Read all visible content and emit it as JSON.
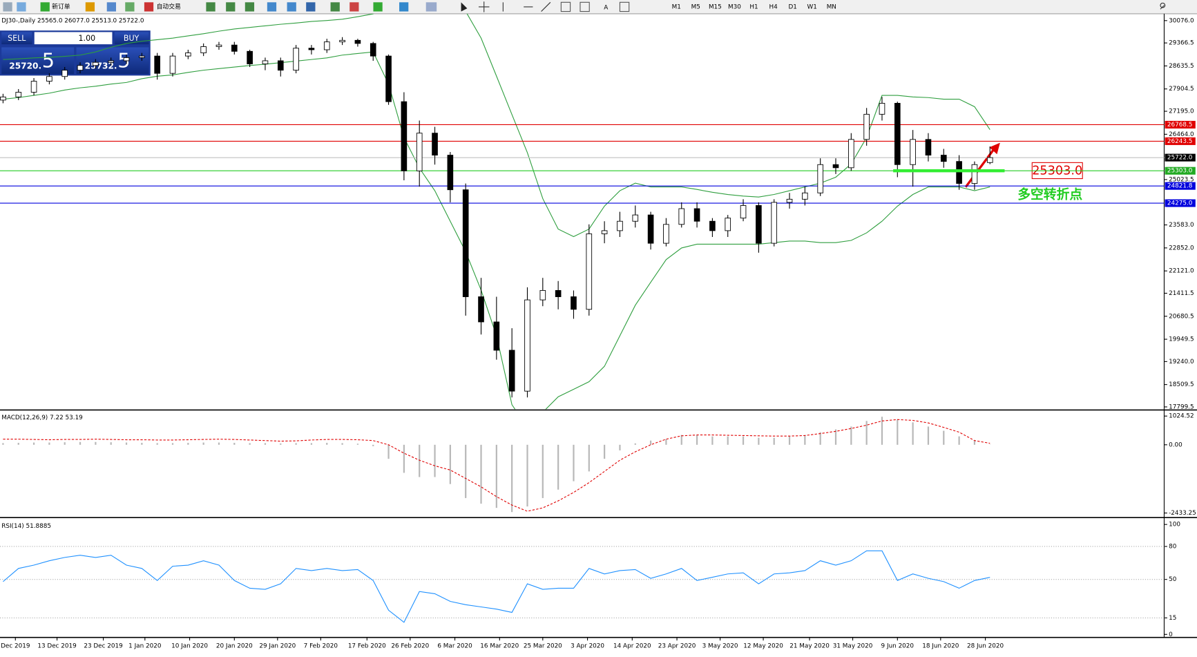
{
  "toolbar": {
    "new_order": "新订单",
    "auto_trading": "自动交易",
    "timeframes": [
      "M1",
      "M5",
      "M15",
      "M30",
      "H1",
      "H4",
      "D1",
      "W1",
      "MN"
    ]
  },
  "trade_panel": {
    "sell": "SELL",
    "lot": "1.00",
    "buy": "BUY",
    "sell_price": "25720.",
    "sell_pip": "5",
    "buy_price": "25732.",
    "buy_pip": "5"
  },
  "annotation": {
    "label": "25303.0",
    "text": "多空转折点"
  },
  "chart_data": [
    {
      "type": "candlestick",
      "title": "DJ30-,Daily  25565.0 26077.0 25513.0 25722.0",
      "up_color": "#ffffff",
      "down_color": "#000000",
      "band_color": "#2e9e3e",
      "open": [
        27550,
        27650,
        27800,
        28150,
        28300,
        28500,
        28650,
        28750,
        28800,
        28900,
        28950,
        28400,
        28950,
        29050,
        29250,
        29300,
        29100,
        28700,
        28800,
        28500,
        29200,
        29150,
        29400,
        29450,
        29350,
        28950,
        27500,
        25300,
        26500,
        25800,
        24700,
        21300,
        20500,
        19600,
        18300,
        21200,
        21500,
        21300,
        20900,
        23300,
        23400,
        23700,
        23900,
        23000,
        23600,
        24100,
        23700,
        23400,
        23800,
        24200,
        23000,
        24300,
        24400,
        24600,
        25500,
        25400,
        26300,
        27100,
        27450,
        25500,
        26300,
        25800,
        25600,
        24900,
        25565
      ],
      "high": [
        27750,
        27900,
        28250,
        28400,
        28600,
        28750,
        28850,
        28900,
        29000,
        29050,
        29050,
        29050,
        29150,
        29350,
        29400,
        29400,
        29150,
        28900,
        28900,
        29300,
        29300,
        29500,
        29550,
        29500,
        29400,
        29000,
        27800,
        26900,
        26700,
        25900,
        24900,
        21900,
        21300,
        20300,
        21600,
        21900,
        21800,
        21500,
        23600,
        23700,
        24000,
        24200,
        24000,
        23800,
        24300,
        24300,
        23800,
        23900,
        24400,
        24300,
        24400,
        24600,
        24800,
        25700,
        25700,
        26500,
        27300,
        27650,
        27500,
        26600,
        26500,
        26000,
        25800,
        25600,
        26077
      ],
      "low": [
        27450,
        27550,
        27700,
        28050,
        28200,
        28400,
        28550,
        28650,
        28700,
        28800,
        28200,
        28300,
        28850,
        28950,
        29150,
        29000,
        28600,
        28500,
        28300,
        28400,
        29000,
        29050,
        29300,
        29250,
        28800,
        27400,
        25000,
        24800,
        25500,
        24300,
        20700,
        20100,
        19300,
        18100,
        18100,
        21000,
        20900,
        20600,
        20700,
        23000,
        23200,
        23500,
        22800,
        22900,
        23500,
        23500,
        23200,
        23200,
        23700,
        22700,
        22900,
        24100,
        24200,
        24500,
        25200,
        25300,
        26100,
        26900,
        25100,
        24800,
        25600,
        25400,
        24700,
        24700,
        25513
      ],
      "close": [
        27650,
        27800,
        28150,
        28300,
        28500,
        28650,
        28750,
        28800,
        28900,
        28950,
        28400,
        28950,
        29050,
        29250,
        29300,
        29100,
        28700,
        28800,
        28500,
        29200,
        29150,
        29400,
        29450,
        29350,
        28950,
        27500,
        25300,
        26500,
        25800,
        24700,
        21300,
        20500,
        19600,
        18300,
        21200,
        21500,
        21300,
        20900,
        23300,
        23400,
        23700,
        23900,
        23000,
        23600,
        24100,
        23700,
        23400,
        23800,
        24200,
        23000,
        24300,
        24400,
        24600,
        25500,
        25400,
        26300,
        27100,
        27450,
        25500,
        26300,
        25800,
        25600,
        24900,
        25500,
        25722
      ],
      "upper_band": [
        28840,
        28860,
        28890,
        28910,
        28940,
        28980,
        29080,
        29230,
        29350,
        29420,
        29470,
        29520,
        29590,
        29660,
        29740,
        29810,
        29860,
        29910,
        29960,
        30000,
        30050,
        30080,
        30120,
        30200,
        30290,
        30610,
        30970,
        31220,
        31220,
        30850,
        30370,
        29520,
        28310,
        27090,
        25880,
        24420,
        23450,
        23210,
        23450,
        24180,
        24670,
        24910,
        24790,
        24790,
        24790,
        24710,
        24620,
        24550,
        24500,
        24470,
        24550,
        24670,
        24790,
        24910,
        25100,
        25520,
        26360,
        27700,
        27700,
        27650,
        27630,
        27580,
        27580,
        27340,
        26610
      ],
      "lower_band": [
        27580,
        27630,
        27700,
        27770,
        27870,
        27940,
        27990,
        28060,
        28110,
        28230,
        28310,
        28350,
        28430,
        28500,
        28550,
        28600,
        28650,
        28690,
        28740,
        28790,
        28840,
        28890,
        28980,
        29030,
        29080,
        28060,
        26360,
        25390,
        24670,
        23700,
        22730,
        21510,
        20060,
        17870,
        17150,
        17630,
        18120,
        18360,
        18600,
        19090,
        20060,
        21030,
        21760,
        22480,
        22850,
        22970,
        22970,
        22970,
        22970,
        22970,
        23020,
        23070,
        23070,
        23020,
        23020,
        23090,
        23330,
        23700,
        24180,
        24550,
        24790,
        24790,
        24790,
        24670,
        24790
      ],
      "hlines": [
        {
          "value": 26768.5,
          "label": "26768.5",
          "color": "#e00000",
          "label_bg": "#e00000"
        },
        {
          "value": 26243.5,
          "label": "26243.5",
          "color": "#e00000",
          "label_bg": "#e00000"
        },
        {
          "value": 25722,
          "label": "25722.0",
          "color": "#c0c0c0",
          "label_bg": "#000000"
        },
        {
          "value": 25303,
          "label": "25303.0",
          "color": "#22cc22",
          "label_bg": "#22aa22"
        },
        {
          "value": 24821.8,
          "label": "24821.8",
          "color": "#0000dd",
          "label_bg": "#0000dd"
        },
        {
          "value": 24275,
          "label": "24275.0",
          "color": "#0000dd",
          "label_bg": "#0000dd"
        }
      ],
      "ylim": [
        17799.5,
        30076
      ],
      "yticks": [
        {
          "value": 30076,
          "label": "30076.0"
        },
        29366.5,
        28635.5,
        27904.5,
        {
          "value": 27195,
          "label": "27195.0"
        },
        {
          "value": 26464,
          "label": "26464.0"
        },
        25023.5,
        {
          "value": 23583,
          "label": "23583.0"
        },
        {
          "value": 22852,
          "label": "22852.0"
        },
        {
          "value": 22121,
          "label": "22121.0"
        },
        21411.5,
        20680.5,
        19949.5,
        {
          "value": 19240,
          "label": "19240.0"
        },
        18509.5,
        17799.5
      ],
      "xticks": [
        {
          "value": 0.8,
          "label": "Dec 2019"
        },
        {
          "value": 3.5,
          "label": "13 Dec 2019"
        },
        {
          "value": 6.5,
          "label": "23 Dec 2019"
        },
        {
          "value": 9.2,
          "label": "1 Jan 2020"
        },
        {
          "value": 12.1,
          "label": "10 Jan 2020"
        },
        {
          "value": 15,
          "label": "20 Jan 2020"
        },
        {
          "value": 17.8,
          "label": "29 Jan 2020"
        },
        {
          "value": 20.6,
          "label": "7 Feb 2020"
        },
        {
          "value": 23.6,
          "label": "17 Feb 2020"
        },
        {
          "value": 26.4,
          "label": "26 Feb 2020"
        },
        {
          "value": 29.3,
          "label": "6 Mar 2020"
        },
        {
          "value": 32.2,
          "label": "16 Mar 2020"
        },
        {
          "value": 35,
          "label": "25 Mar 2020"
        },
        {
          "value": 37.9,
          "label": "3 Apr 2020"
        },
        {
          "value": 40.8,
          "label": "14 Apr 2020"
        },
        {
          "value": 43.7,
          "label": "23 Apr 2020"
        },
        {
          "value": 46.5,
          "label": "3 May 2020"
        },
        {
          "value": 49.3,
          "label": "12 May 2020"
        },
        {
          "value": 52.3,
          "label": "21 May 2020"
        },
        {
          "value": 55.1,
          "label": "31 May 2020"
        },
        {
          "value": 58,
          "label": "9 Jun 2020"
        },
        {
          "value": 60.8,
          "label": "18 Jun 2020"
        },
        {
          "value": 63.7,
          "label": "28 Jun 2020"
        }
      ]
    },
    {
      "type": "macd",
      "title": "MACD(12,26,9) 7.22 53.19",
      "color": "#b8b8b8",
      "signal_color": "#e00000",
      "values": [
        60,
        70,
        80,
        80,
        90,
        100,
        100,
        90,
        80,
        70,
        60,
        60,
        70,
        80,
        80,
        70,
        60,
        60,
        50,
        60,
        60,
        70,
        60,
        40,
        -50,
        -500,
        -1000,
        -1150,
        -1150,
        -1400,
        -1900,
        -2100,
        -2250,
        -2400,
        -2200,
        -1900,
        -1600,
        -1300,
        -950,
        -500,
        -200,
        50,
        150,
        200,
        350,
        350,
        300,
        300,
        300,
        250,
        250,
        300,
        350,
        450,
        550,
        650,
        850,
        1000,
        900,
        800,
        650,
        500,
        300,
        150,
        7.22
      ],
      "signal": [
        200,
        200,
        190,
        180,
        190,
        190,
        200,
        190,
        180,
        180,
        170,
        170,
        180,
        190,
        200,
        190,
        170,
        150,
        130,
        140,
        170,
        190,
        190,
        180,
        150,
        0,
        -300,
        -550,
        -750,
        -900,
        -1200,
        -1500,
        -1850,
        -2150,
        -2370,
        -2250,
        -2000,
        -1700,
        -1350,
        -950,
        -550,
        -250,
        0,
        200,
        320,
        350,
        350,
        340,
        330,
        320,
        310,
        310,
        330,
        400,
        480,
        580,
        700,
        850,
        900,
        870,
        780,
        620,
        450,
        150,
        53.19
      ],
      "ylim": [
        -2433.25,
        1024.52
      ],
      "yticks": [
        1024.52,
        {
          "value": 0,
          "label": "0.00"
        },
        -2433.25
      ]
    },
    {
      "type": "line",
      "title": "RSI(14) 51.8885",
      "color": "#1e90ff",
      "values": [
        48,
        60,
        63,
        67,
        70,
        72,
        70,
        72,
        63,
        60,
        49,
        62,
        63,
        67,
        63,
        49,
        42,
        41,
        46,
        60,
        58,
        60,
        58,
        59,
        49,
        22,
        11,
        39,
        37,
        30,
        27,
        25,
        23,
        20,
        46,
        41,
        42,
        42,
        60,
        55,
        58,
        59,
        51,
        55,
        60,
        49,
        52,
        55,
        56,
        46,
        55,
        56,
        58,
        67,
        63,
        67,
        76,
        76,
        49,
        55,
        51,
        48,
        42,
        49,
        51.8885
      ],
      "ylim": [
        0,
        100
      ],
      "yticks": [
        100,
        80,
        50,
        15,
        0
      ]
    }
  ]
}
